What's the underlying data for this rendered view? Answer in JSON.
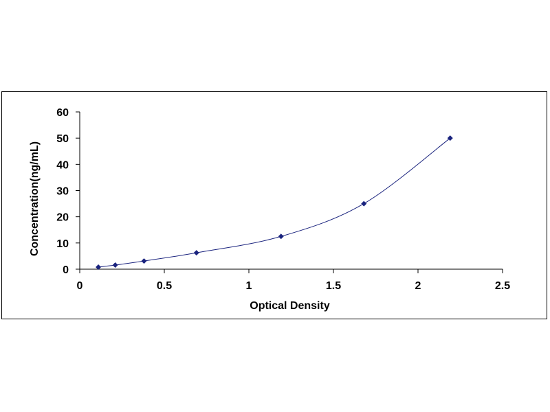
{
  "chart_data": {
    "type": "scatter",
    "title": "",
    "xlabel": "Optical Density",
    "ylabel": "Concentration(ng/mL)",
    "xlim": [
      0,
      2.5
    ],
    "ylim": [
      0,
      60
    ],
    "x_ticks": [
      "0",
      "0.5",
      "1",
      "1.5",
      "2",
      "2.5"
    ],
    "y_ticks": [
      "0",
      "10",
      "20",
      "30",
      "40",
      "50",
      "60"
    ],
    "grid": false,
    "legend": "none",
    "trendline": "smooth fitted curve",
    "series": [
      {
        "color": "#1a237e",
        "marker": "diamond",
        "x": [
          0.11,
          0.21,
          0.38,
          0.69,
          1.19,
          1.68,
          2.19
        ],
        "y": [
          0.78,
          1.56,
          3.12,
          6.25,
          12.5,
          25,
          50
        ]
      }
    ],
    "curve_color": "#1a237e"
  }
}
